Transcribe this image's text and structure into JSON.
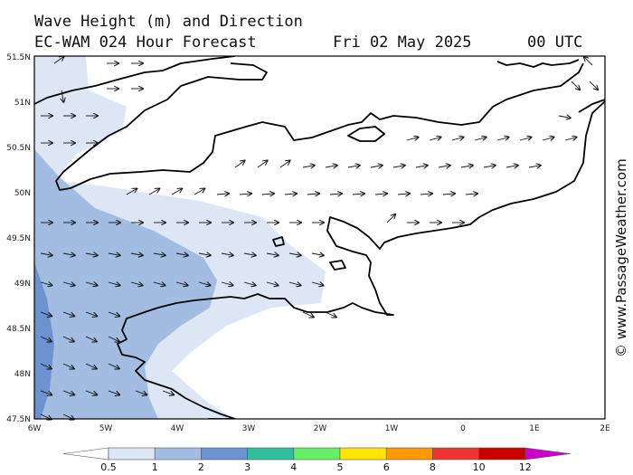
{
  "header": {
    "title": "Wave Height (m) and Direction",
    "model": "EC-WAM 024 Hour Forecast",
    "date": "Fri 02 May 2025",
    "time": "00 UTC"
  },
  "credit": "© www.PassageWeather.com",
  "axes": {
    "lon_labels": [
      "6W",
      "5W",
      "4W",
      "3W",
      "2W",
      "1W",
      "0",
      "1E",
      "2E"
    ],
    "lat_labels": [
      "51.5N",
      "51N",
      "50.5N",
      "50N",
      "49.5N",
      "49N",
      "48.5N",
      "48N",
      "47.5N"
    ]
  },
  "legend": {
    "labels": [
      "0.5",
      "1",
      "2",
      "3",
      "4",
      "5",
      "6",
      "8",
      "10",
      "12"
    ],
    "colors": [
      "#dde6f5",
      "#a3bde2",
      "#6c93d0",
      "#2fbf9a",
      "#66ee66",
      "#ffe500",
      "#ff9900",
      "#ee3333",
      "#c80000",
      "#cc00cc"
    ]
  }
}
